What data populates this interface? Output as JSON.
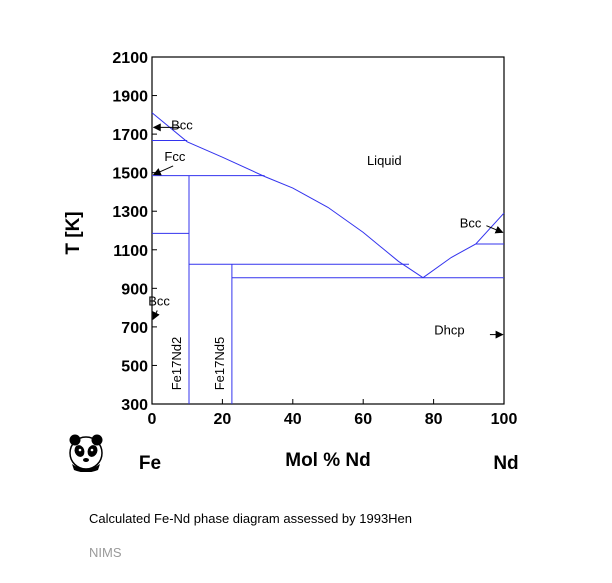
{
  "chart_data": {
    "type": "line",
    "title": "",
    "xlabel": "Mol % Nd",
    "ylabel": "T [K]",
    "xlim": [
      0,
      100
    ],
    "ylim": [
      300,
      2100
    ],
    "x_ticks": [
      0,
      20,
      40,
      60,
      80,
      100
    ],
    "y_ticks": [
      300,
      500,
      700,
      900,
      1100,
      1300,
      1500,
      1700,
      1900,
      2100
    ],
    "end_labels": {
      "left": "Fe",
      "right": "Nd"
    },
    "grid": false,
    "line_color": "#3333ee",
    "series": [
      {
        "id": "liquidus-fe",
        "points": [
          [
            0,
            1811
          ],
          [
            10,
            1660
          ],
          [
            20,
            1580
          ],
          [
            32,
            1480
          ],
          [
            40,
            1420
          ],
          [
            50,
            1320
          ],
          [
            60,
            1190
          ],
          [
            70,
            1040
          ],
          [
            77,
            955
          ]
        ]
      },
      {
        "id": "liquidus-nd",
        "points": [
          [
            77,
            955
          ],
          [
            85,
            1060
          ],
          [
            92,
            1130
          ],
          [
            100,
            1290
          ]
        ]
      },
      {
        "id": "bcc-fe-line",
        "points": [
          [
            0,
            1667
          ],
          [
            10,
            1667
          ]
        ]
      },
      {
        "id": "fcc-line",
        "points": [
          [
            0,
            1485
          ],
          [
            32,
            1485
          ]
        ]
      },
      {
        "id": "fe-magnetic-line",
        "points": [
          [
            0,
            1185
          ],
          [
            10.5,
            1185
          ]
        ]
      },
      {
        "id": "fe17nd2-line",
        "points": [
          [
            10.5,
            300
          ],
          [
            10.5,
            1485
          ]
        ]
      },
      {
        "id": "fe17nd2-peritectic",
        "points": [
          [
            10.5,
            1025
          ],
          [
            73,
            1025
          ]
        ]
      },
      {
        "id": "fe17nd5-line",
        "points": [
          [
            22.7,
            300
          ],
          [
            22.7,
            1025
          ]
        ]
      },
      {
        "id": "eutectic-line",
        "points": [
          [
            22.7,
            955
          ],
          [
            100,
            955
          ]
        ]
      },
      {
        "id": "nd-bcc-line",
        "points": [
          [
            92,
            1130
          ],
          [
            100,
            1130
          ]
        ]
      }
    ],
    "phase_labels": [
      {
        "text": "Liquid",
        "x": 66,
        "y": 1540
      },
      {
        "text": "Bcc",
        "x": 8.5,
        "y": 1725
      },
      {
        "text": "Fcc",
        "x": 6.5,
        "y": 1560
      },
      {
        "text": "Bcc",
        "x": 2,
        "y": 810
      },
      {
        "text": "Bcc",
        "x": 90.5,
        "y": 1215
      },
      {
        "text": "Dhcp",
        "x": 84.5,
        "y": 660
      }
    ],
    "compound_labels": [
      {
        "text": "Fe17Nd2",
        "x": 8.3,
        "y": 510
      },
      {
        "text": "Fe17Nd5",
        "x": 20.5,
        "y": 510
      }
    ],
    "arrows": [
      {
        "from": [
          8,
          1735
        ],
        "to": [
          0.5,
          1735
        ]
      },
      {
        "from": [
          6,
          1535
        ],
        "to": [
          0.5,
          1490
        ]
      },
      {
        "from": [
          1.5,
          785
        ],
        "to": [
          0.3,
          740
        ]
      },
      {
        "from": [
          95,
          1225
        ],
        "to": [
          99.6,
          1190
        ]
      },
      {
        "from": [
          96,
          660
        ],
        "to": [
          99.6,
          660
        ]
      }
    ]
  },
  "caption": "Calculated Fe-Nd phase diagram assessed by 1993Hen",
  "credit": "NIMS",
  "logo_icon": "panda-logo-icon"
}
